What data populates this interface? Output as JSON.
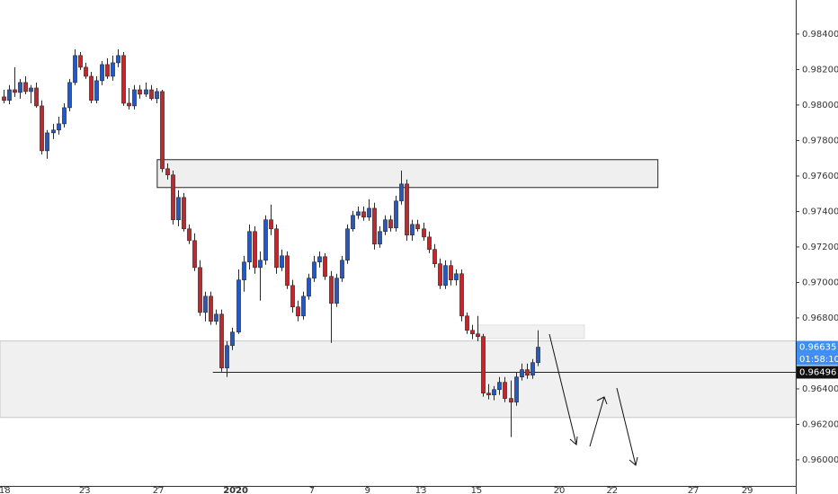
{
  "chart_data": {
    "type": "candlestick",
    "up_color": "#2458c6",
    "down_color": "#c3272c",
    "open": [
      0.98046,
      0.98026,
      0.98086,
      0.98071,
      0.98127,
      0.98076,
      0.98096,
      0.97995,
      0.97742,
      0.97843,
      0.97859,
      0.97894,
      0.97985,
      0.98127,
      0.98279,
      0.98213,
      0.98162,
      0.98026,
      0.98137,
      0.98228,
      0.98162,
      0.98238,
      0.98279,
      0.9801,
      0.97995,
      0.98086,
      0.98061,
      0.98086,
      0.98036,
      0.98076,
      0.97641,
      0.97606,
      0.97353,
      0.97479,
      0.97302,
      0.97236,
      0.97084,
      0.96831,
      0.96922,
      0.96781,
      0.96821,
      0.96518,
      0.96644,
      0.9672,
      0.97014,
      0.97115,
      0.97287,
      0.97084,
      0.97125,
      0.97353,
      0.97302,
      0.97084,
      0.9715,
      0.96983,
      0.96862,
      0.96811,
      0.96922,
      0.97024,
      0.97115,
      0.97145,
      0.97034,
      0.96882,
      0.97024,
      0.97125,
      0.97302,
      0.97378,
      0.97398,
      0.97368,
      0.97418,
      0.97216,
      0.97287,
      0.97353,
      0.97307,
      0.97459,
      0.97555,
      0.97267,
      0.97327,
      0.97302,
      0.97256,
      0.97186,
      0.97105,
      0.96983,
      0.97095,
      0.97014,
      0.97049,
      0.96811,
      0.9673,
      0.9671,
      0.96695,
      0.96376,
      0.96366,
      0.96396,
      0.96437,
      0.96346,
      0.96325,
      0.96467,
      0.96508,
      0.96477,
      0.96548
    ],
    "high": [
      0.98086,
      0.98112,
      0.98213,
      0.98147,
      0.98162,
      0.98112,
      0.98127,
      0.98026,
      0.97859,
      0.97894,
      0.97934,
      0.9801,
      0.98147,
      0.98314,
      0.98299,
      0.98238,
      0.98187,
      0.98162,
      0.98248,
      0.98263,
      0.98279,
      0.98314,
      0.98299,
      0.98096,
      0.98112,
      0.98112,
      0.98127,
      0.98112,
      0.98096,
      0.98086,
      0.97671,
      0.97631,
      0.9752,
      0.97504,
      0.97327,
      0.97277,
      0.97125,
      0.96948,
      0.96948,
      0.96847,
      0.96847,
      0.96669,
      0.96745,
      0.97074,
      0.9715,
      0.97327,
      0.97317,
      0.97175,
      0.97378,
      0.97439,
      0.97327,
      0.97186,
      0.97175,
      0.97014,
      0.96897,
      0.96948,
      0.97049,
      0.9715,
      0.97175,
      0.97165,
      0.97064,
      0.97049,
      0.9715,
      0.97327,
      0.97403,
      0.97428,
      0.97428,
      0.97469,
      0.97449,
      0.97317,
      0.97378,
      0.97378,
      0.97489,
      0.97631,
      0.9758,
      0.97353,
      0.97353,
      0.97337,
      0.97287,
      0.97216,
      0.97135,
      0.97125,
      0.97125,
      0.97074,
      0.97074,
      0.96831,
      0.96761,
      0.96811,
      0.9671,
      0.96427,
      0.96416,
      0.96467,
      0.96467,
      0.96447,
      0.96492,
      0.96543,
      0.96543,
      0.96568,
      0.9673
    ],
    "low": [
      0.9801,
      0.98005,
      0.98046,
      0.98036,
      0.98061,
      0.9801,
      0.97985,
      0.97722,
      0.97697,
      0.97808,
      0.97833,
      0.97874,
      0.97965,
      0.98112,
      0.98198,
      0.98147,
      0.9801,
      0.9801,
      0.98112,
      0.98147,
      0.98137,
      0.98213,
      0.97995,
      0.97975,
      0.97975,
      0.98036,
      0.98046,
      0.98026,
      0.9801,
      0.97621,
      0.9758,
      0.97327,
      0.97317,
      0.97287,
      0.97216,
      0.97064,
      0.96811,
      0.96781,
      0.96761,
      0.96761,
      0.96497,
      0.96467,
      0.96619,
      0.9671,
      0.96948,
      0.97074,
      0.97049,
      0.96897,
      0.971,
      0.97267,
      0.97049,
      0.97064,
      0.96963,
      0.96831,
      0.96781,
      0.96791,
      0.96902,
      0.97003,
      0.97084,
      0.97014,
      0.96659,
      0.96862,
      0.97003,
      0.97105,
      0.97287,
      0.97358,
      0.97348,
      0.97348,
      0.97186,
      0.97196,
      0.97267,
      0.97287,
      0.97287,
      0.97439,
      0.97236,
      0.97236,
      0.97287,
      0.97236,
      0.97165,
      0.97084,
      0.96963,
      0.96963,
      0.96983,
      0.96983,
      0.96781,
      0.9671,
      0.9668,
      0.96669,
      0.96356,
      0.96341,
      0.96336,
      0.96366,
      0.96325,
      0.96128,
      0.96305,
      0.96447,
      0.96457,
      0.96457,
      0.96528
    ],
    "close": [
      0.98026,
      0.98086,
      0.98071,
      0.98127,
      0.98076,
      0.98096,
      0.97995,
      0.97742,
      0.97843,
      0.97859,
      0.97894,
      0.97985,
      0.98127,
      0.98279,
      0.98213,
      0.98162,
      0.98026,
      0.98137,
      0.98228,
      0.98162,
      0.98238,
      0.98279,
      0.9801,
      0.97995,
      0.98086,
      0.98061,
      0.98086,
      0.98036,
      0.98076,
      0.97641,
      0.97606,
      0.97353,
      0.97479,
      0.97302,
      0.97236,
      0.97084,
      0.96831,
      0.96922,
      0.96781,
      0.96821,
      0.96518,
      0.96644,
      0.9672,
      0.97014,
      0.97115,
      0.97287,
      0.97084,
      0.97125,
      0.97353,
      0.97302,
      0.97084,
      0.9715,
      0.96983,
      0.96862,
      0.96811,
      0.96922,
      0.97024,
      0.97115,
      0.97145,
      0.97034,
      0.96882,
      0.97024,
      0.97125,
      0.97302,
      0.97378,
      0.97398,
      0.97368,
      0.97418,
      0.97216,
      0.97287,
      0.97353,
      0.97307,
      0.97459,
      0.97555,
      0.97267,
      0.97327,
      0.97302,
      0.97256,
      0.97186,
      0.97105,
      0.96983,
      0.97095,
      0.97014,
      0.97049,
      0.96811,
      0.9673,
      0.9671,
      0.96695,
      0.96376,
      0.96366,
      0.96396,
      0.96437,
      0.96346,
      0.96325,
      0.96467,
      0.96508,
      0.96477,
      0.96548,
      0.96635
    ],
    "xlim": [
      -0.66,
      145.4
    ],
    "ylim": [
      0.95853,
      0.98592
    ],
    "yticks": [
      {
        "value": 0.96,
        "label": "0.96000"
      },
      {
        "value": 0.962,
        "label": "0.96200"
      },
      {
        "value": 0.964,
        "label": "0.96400"
      },
      {
        "value": 0.968,
        "label": "0.96800"
      },
      {
        "value": 0.97,
        "label": "0.97000"
      },
      {
        "value": 0.972,
        "label": "0.97200"
      },
      {
        "value": 0.974,
        "label": "0.97400"
      },
      {
        "value": 0.976,
        "label": "0.97600"
      },
      {
        "value": 0.978,
        "label": "0.97800"
      },
      {
        "value": 0.98,
        "label": "0.98000"
      },
      {
        "value": 0.982,
        "label": "0.98200"
      },
      {
        "value": 0.984,
        "label": "0.98400"
      }
    ],
    "xticks": [
      {
        "value": 0.2,
        "label": "18"
      },
      {
        "value": 14.9,
        "label": "23"
      },
      {
        "value": 28.4,
        "label": "27"
      },
      {
        "value": 42.6,
        "label": "2020"
      },
      {
        "value": 56.6,
        "label": "7"
      },
      {
        "value": 66.8,
        "label": "9"
      },
      {
        "value": 76.6,
        "label": "13"
      },
      {
        "value": 86.8,
        "label": "15"
      },
      {
        "value": 102,
        "label": "20"
      },
      {
        "value": 111.7,
        "label": "22"
      },
      {
        "value": 126.6,
        "label": "27"
      },
      {
        "value": 136.5,
        "label": "29"
      }
    ],
    "zones": [
      {
        "x": [
          28.2,
          120.1
        ],
        "y": [
          0.97535,
          0.97692
        ],
        "color": "#e9e9e9",
        "border": "#222222"
      },
      {
        "x": [
          87.1,
          106.6
        ],
        "y": [
          0.96684,
          0.9676
        ],
        "color": "#ececec",
        "border": "#e0e0e0"
      },
      {
        "x": [
          -0.66,
          145.4
        ],
        "y": [
          0.96239,
          0.9667
        ],
        "color": "#ebebeb",
        "border": "#c8c8c8"
      }
    ],
    "horizontal_line": {
      "value": 0.96496,
      "x_start": 38.4
    },
    "last_price": 0.96635,
    "countdown": "01:58:10",
    "last_price_color": "#3d8ff5"
  }
}
